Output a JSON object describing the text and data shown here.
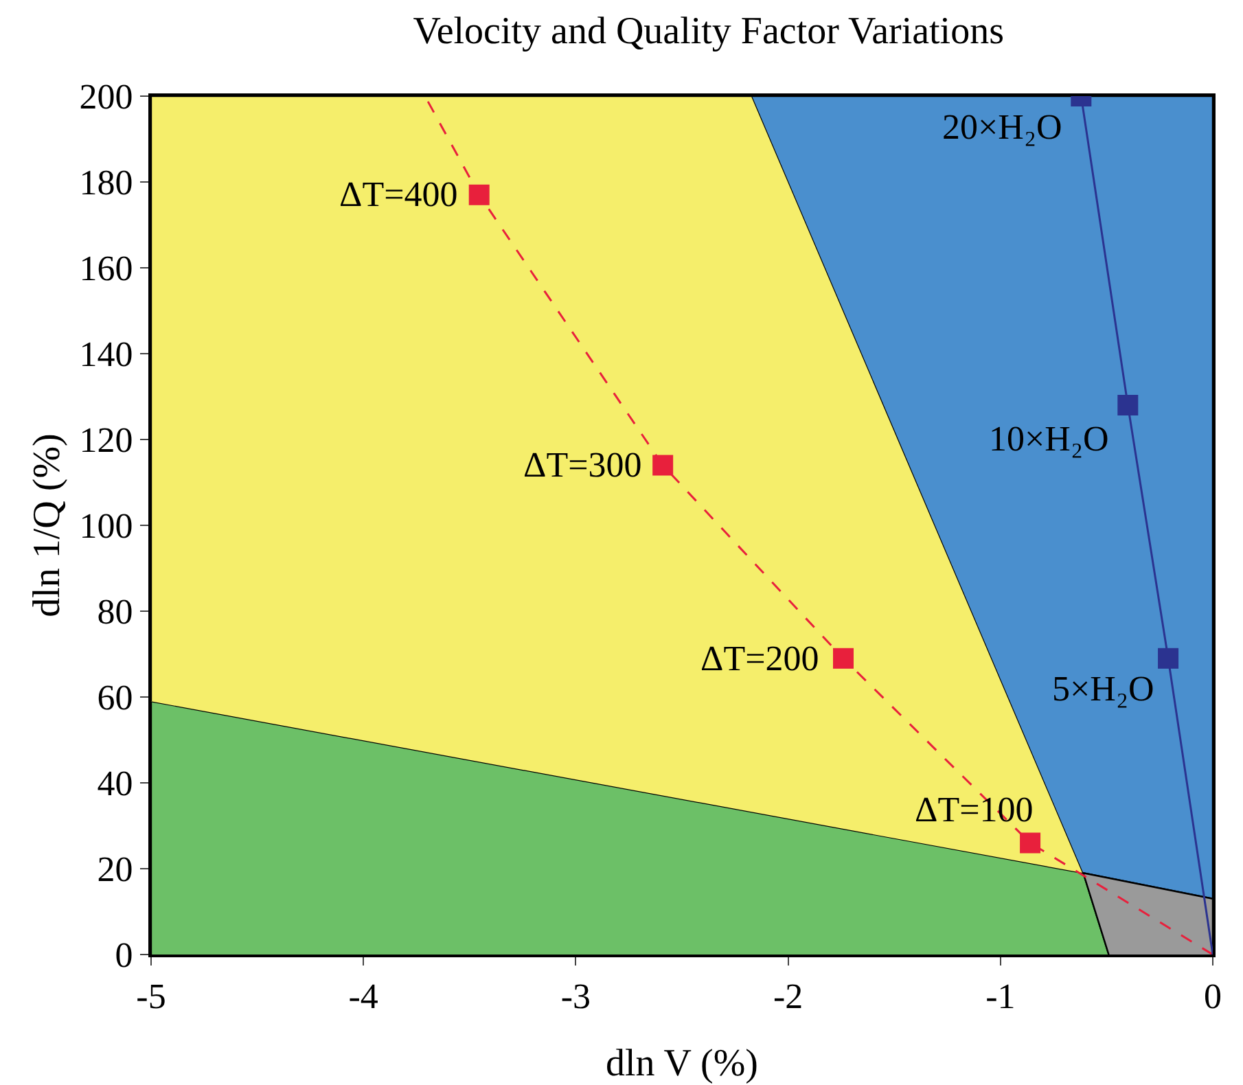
{
  "chart_data": {
    "type": "line",
    "title": "Velocity and Quality Factor Variations",
    "xlabel": "dln V (%)",
    "ylabel": "dln 1/Q (%)",
    "xlim": [
      -5,
      0
    ],
    "xticks": [
      -5,
      -4,
      -3,
      -2,
      -1,
      0
    ],
    "ylim": [
      0,
      200
    ],
    "yticks": [
      0,
      20,
      40,
      60,
      80,
      100,
      120,
      140,
      160,
      180,
      200
    ],
    "series": [
      {
        "type": "area",
        "color": "#6cc067",
        "x": [
          -5,
          -5,
          -0.61,
          -0.49
        ],
        "values": [
          0,
          59,
          19,
          0
        ]
      },
      {
        "type": "area",
        "color": "#f5ee6b",
        "x": [
          -5,
          -5,
          -2.17,
          -0.61
        ],
        "values": [
          59,
          200,
          200,
          19
        ]
      },
      {
        "type": "area",
        "color": "#4a8fce",
        "x": [
          -2.17,
          0,
          0,
          -0.61
        ],
        "values": [
          200,
          200,
          13,
          19
        ]
      },
      {
        "type": "area",
        "color": "#9a9a9a",
        "x": [
          -0.49,
          -0.61,
          0,
          0
        ],
        "values": [
          0,
          19,
          13,
          0
        ]
      },
      {
        "color": "#e8203c",
        "line_style": "dashed",
        "x": [
          0,
          -0.86,
          -1.74,
          -2.59,
          -3.455,
          -3.71
        ],
        "values": [
          0,
          26,
          69,
          114,
          177,
          200
        ]
      },
      {
        "type": "scatter",
        "color": "#e8203c",
        "marker": "square",
        "x": [
          -0.86,
          -1.74,
          -2.59,
          -3.455
        ],
        "values": [
          26,
          69,
          114,
          177
        ]
      },
      {
        "type": "line",
        "color": "#2b3390",
        "line_style": "solid",
        "x": [
          0,
          -0.21,
          -0.4,
          -0.62
        ],
        "values": [
          0,
          69,
          128,
          200
        ]
      },
      {
        "type": "scatter",
        "color": "#2b3390",
        "marker": "square",
        "x": [
          -0.21,
          -0.4,
          -0.62
        ],
        "values": [
          69,
          128,
          200
        ]
      }
    ],
    "annotations": [
      {
        "text": "ΔT=100",
        "x": -0.86,
        "y": 26
      },
      {
        "text": "ΔT=200",
        "x": -1.74,
        "y": 69
      },
      {
        "text": "ΔT=300",
        "x": -2.59,
        "y": 114
      },
      {
        "text": "ΔT=400",
        "x": -3.455,
        "y": 177
      },
      {
        "text": "5×H₂O",
        "x": -0.21,
        "y": 69
      },
      {
        "text": "10×H₂O",
        "x": -0.4,
        "y": 128
      },
      {
        "text": "20×H₂O",
        "x": -0.62,
        "y": 200
      }
    ]
  }
}
